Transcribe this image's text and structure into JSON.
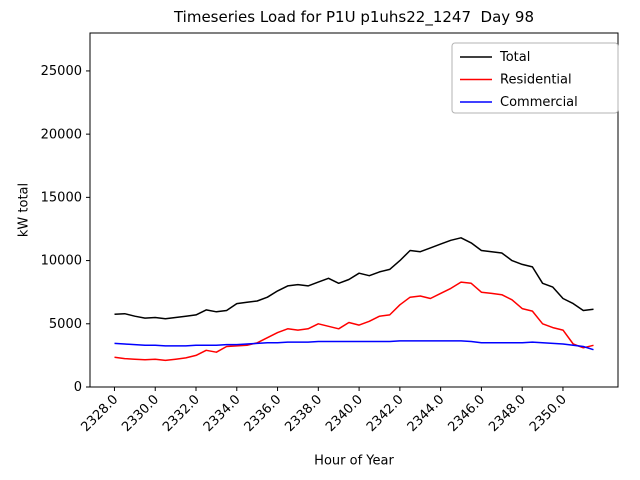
{
  "figure": {
    "title": "Timeseries Load for P1U p1uhs22_1247  Day 98",
    "xlabel": "Hour of Year",
    "ylabel": "kW total"
  },
  "chart_data": {
    "type": "line",
    "title": "Timeseries Load for P1U p1uhs22_1247  Day 98",
    "xlabel": "Hour of Year",
    "ylabel": "kW total",
    "xlim": [
      2326.8,
      2352.7
    ],
    "ylim": [
      0,
      28000
    ],
    "xticks": [
      2328,
      2330,
      2332,
      2334,
      2336,
      2338,
      2340,
      2342,
      2344,
      2346,
      2348,
      2350
    ],
    "xtick_labels": [
      "2328.0",
      "2330.0",
      "2332.0",
      "2334.0",
      "2336.0",
      "2338.0",
      "2340.0",
      "2342.0",
      "2344.0",
      "2346.0",
      "2348.0",
      "2350.0"
    ],
    "yticks": [
      0,
      5000,
      10000,
      15000,
      20000,
      25000
    ],
    "ytick_labels": [
      "0",
      "5000",
      "10000",
      "15000",
      "20000",
      "25000"
    ],
    "grid": false,
    "legend": {
      "position": "upper right",
      "entries": [
        {
          "label": "Total",
          "color": "#000000"
        },
        {
          "label": "Residential",
          "color": "#ff0000"
        },
        {
          "label": "Commercial",
          "color": "#0000ff"
        }
      ]
    },
    "x": [
      2328.0,
      2328.5,
      2329.0,
      2329.5,
      2330.0,
      2330.5,
      2331.0,
      2331.5,
      2332.0,
      2332.5,
      2333.0,
      2333.5,
      2334.0,
      2334.5,
      2335.0,
      2335.5,
      2336.0,
      2336.5,
      2337.0,
      2337.5,
      2338.0,
      2338.5,
      2339.0,
      2339.5,
      2340.0,
      2340.5,
      2341.0,
      2341.5,
      2342.0,
      2342.5,
      2343.0,
      2343.5,
      2344.0,
      2344.5,
      2345.0,
      2345.5,
      2346.0,
      2346.5,
      2347.0,
      2347.5,
      2348.0,
      2348.5,
      2349.0,
      2349.5,
      2350.0,
      2350.5,
      2351.0,
      2351.5
    ],
    "series": [
      {
        "name": "Total",
        "color": "#000000",
        "values": [
          5750,
          5800,
          5600,
          5450,
          5500,
          5400,
          5500,
          5600,
          5700,
          6100,
          5950,
          6050,
          6600,
          6700,
          6800,
          7100,
          7600,
          8000,
          8100,
          8000,
          8300,
          8600,
          8200,
          8500,
          9000,
          8800,
          9100,
          9300,
          10000,
          10800,
          10700,
          11000,
          11300,
          11600,
          11800,
          11400,
          10800,
          10700,
          10600,
          10000,
          9700,
          9500,
          8200,
          7900,
          7000,
          6600,
          6050,
          6150
        ]
      },
      {
        "name": "Residential",
        "color": "#ff0000",
        "values": [
          2350,
          2250,
          2200,
          2150,
          2200,
          2100,
          2200,
          2300,
          2500,
          2900,
          2750,
          3200,
          3250,
          3300,
          3500,
          3900,
          4300,
          4600,
          4500,
          4600,
          5000,
          4800,
          4600,
          5100,
          4900,
          5200,
          5600,
          5700,
          6500,
          7100,
          7200,
          7000,
          7400,
          7800,
          8300,
          8200,
          7500,
          7400,
          7300,
          6900,
          6200,
          6000,
          5000,
          4700,
          4500,
          3400,
          3100,
          3300
        ]
      },
      {
        "name": "Commercial",
        "color": "#0000ff",
        "values": [
          3450,
          3400,
          3350,
          3300,
          3300,
          3250,
          3250,
          3250,
          3300,
          3300,
          3300,
          3350,
          3350,
          3400,
          3450,
          3500,
          3500,
          3550,
          3550,
          3550,
          3600,
          3600,
          3600,
          3600,
          3600,
          3600,
          3600,
          3600,
          3650,
          3650,
          3650,
          3650,
          3650,
          3650,
          3650,
          3600,
          3500,
          3500,
          3500,
          3500,
          3500,
          3550,
          3500,
          3450,
          3400,
          3300,
          3200,
          2950
        ]
      }
    ]
  }
}
